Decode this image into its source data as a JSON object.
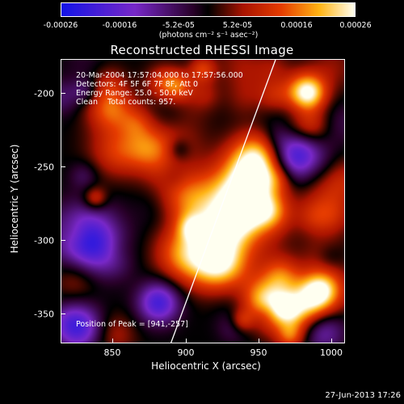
{
  "colorbar": {
    "ticks": [
      "-0.00026",
      "-0.00016",
      "-5.2e-05",
      "5.2e-05",
      "0.00016",
      "0.00026"
    ],
    "unit": "(photons cm⁻² s⁻¹ asec⁻²)",
    "range": [
      -0.00026,
      0.00026
    ]
  },
  "plot": {
    "title": "Reconstructed RHESSI Image",
    "info_lines": [
      "20-Mar-2004 17:57:04.000 to 17:57:56.000",
      "Detectors: 4F 5F 6F 7F 8F, Att 0",
      "Energy Range: 25.0 - 50.0 keV",
      "Clean    Total counts: 957."
    ],
    "peak": "Position of Peak = [941,-257]",
    "xlabel": "Heliocentric X (arcsec)",
    "ylabel": "Heliocentric Y (arcsec)",
    "xticks": [
      "850",
      "900",
      "950",
      "1000"
    ],
    "yticks": [
      "-200",
      "-250",
      "-300",
      "-350"
    ]
  },
  "chart_data": {
    "type": "heatmap",
    "title": "Reconstructed RHESSI Image",
    "xlabel": "Heliocentric X (arcsec)",
    "ylabel": "Heliocentric Y (arcsec)",
    "xlim": [
      816,
      1012
    ],
    "ylim": [
      -372,
      -176
    ],
    "xticks": [
      850,
      900,
      950,
      1000
    ],
    "yticks": [
      -200,
      -250,
      -300,
      -350
    ],
    "colormap": "blue-purple-black-red-yellow-white",
    "value_range": [
      -0.00026,
      0.00026
    ],
    "peak_position": [
      941,
      -257
    ]
  },
  "footer": {
    "timestamp": "27-Jun-2013 17:26"
  }
}
